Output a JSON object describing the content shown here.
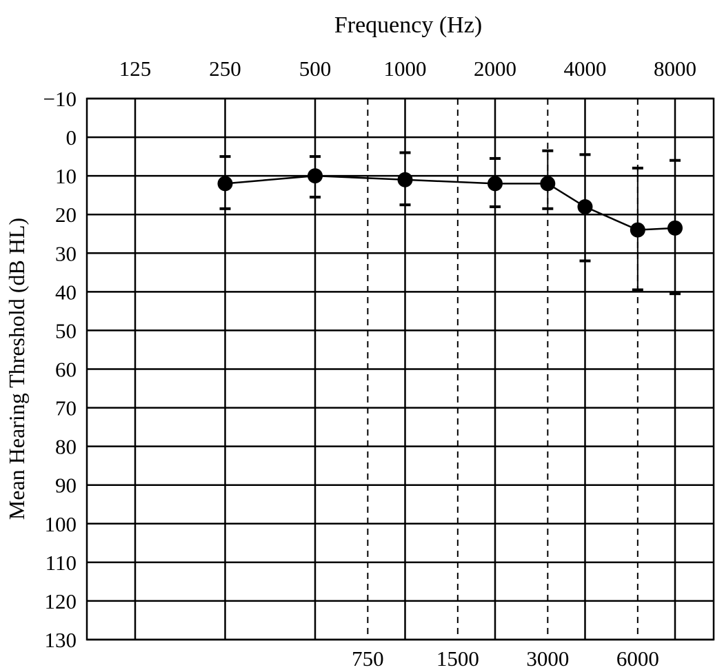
{
  "chart_data": {
    "type": "line",
    "xlabel": "Frequency (Hz)",
    "ylabel": "Mean Hearing Threshold (dB HL)",
    "x_scale": "log2 (audiogram)",
    "y_inverted": true,
    "ylim": [
      -10,
      130
    ],
    "yticks": [
      "−10",
      "0",
      "10",
      "20",
      "30",
      "40",
      "50",
      "60",
      "70",
      "80",
      "90",
      "100",
      "110",
      "120",
      "130"
    ],
    "octave_ticks": [
      "125",
      "250",
      "500",
      "1000",
      "2000",
      "4000",
      "8000"
    ],
    "interoctave_ticks": [
      "750",
      "1500",
      "3000",
      "6000"
    ],
    "grid": true,
    "series": [
      {
        "x": [
          250,
          500,
          1000,
          2000,
          3000,
          4000,
          6000,
          8000
        ],
        "y": [
          12,
          10,
          11,
          12,
          12,
          18,
          24,
          23.5
        ],
        "err_low": [
          5,
          5,
          4,
          5.5,
          3.5,
          4.5,
          8,
          6
        ],
        "err_high": [
          18.5,
          15.5,
          17.5,
          18,
          18.5,
          32,
          39.5,
          40.5
        ]
      }
    ]
  }
}
